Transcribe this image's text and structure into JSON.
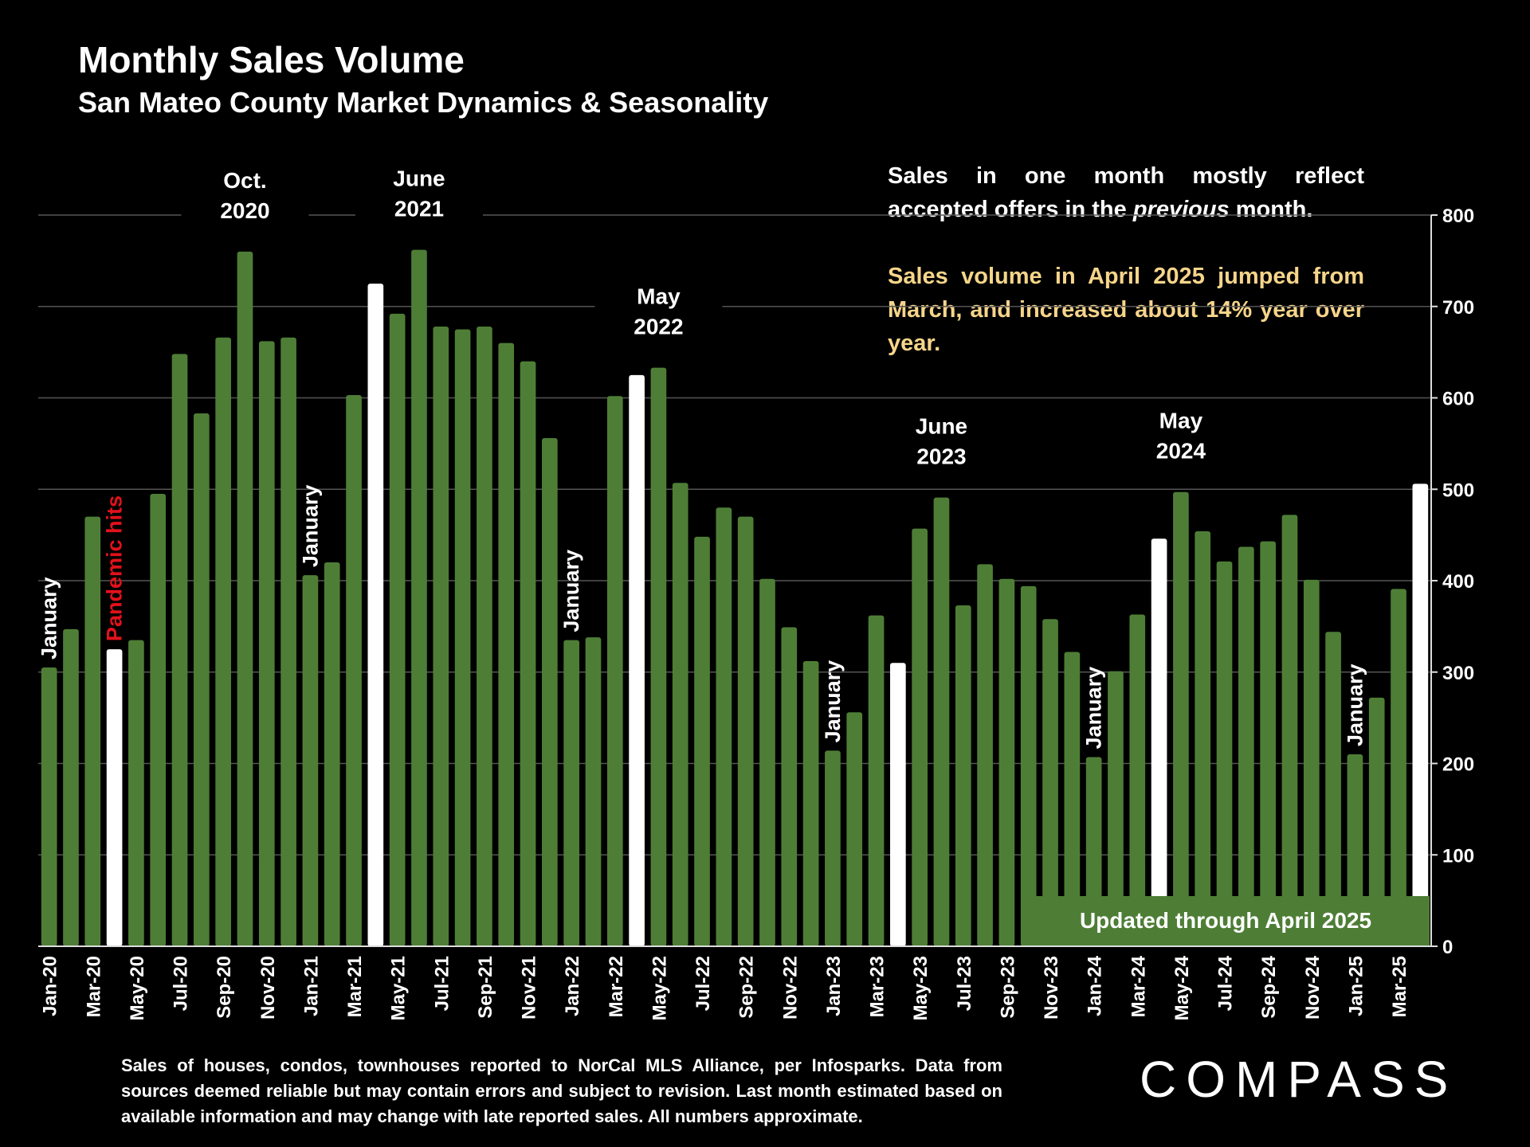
{
  "title": "Monthly Sales Volume",
  "subtitle": "San Mateo County Market Dynamics & Seasonality",
  "note_lines": [
    "Sales in one month mostly reflect",
    "accepted offers in the previous month."
  ],
  "highlight_note": "Sales volume in April 2025 jumped from March, and increased about 14% year over year.",
  "updated_label": "Updated through April 2025",
  "footer": "Sales of houses, condos, townhouses reported to NorCal MLS Alliance, per Infosparks. Data from sources deemed reliable but may contain errors and subject to revision. Last month estimated based on available information and may change with late reported sales. All numbers approximate.",
  "logo": "COMPASS",
  "colors": {
    "bar": "#4e7e36",
    "highlight_bar": "#ffffff",
    "highlight_text": "#f6d58a",
    "pandemic_text": "#e3111b",
    "gridline": "#555555"
  },
  "chart_data": {
    "type": "bar",
    "title": "Monthly Sales Volume",
    "ylim": [
      0,
      800
    ],
    "yticks": [
      "0",
      "100",
      "200",
      "300",
      "400",
      "500",
      "600",
      "700",
      "800"
    ],
    "y_axis_position": "right",
    "grid": true,
    "categories": [
      "Jan-20",
      "Feb-20",
      "Mar-20",
      "Apr-20",
      "May-20",
      "Jun-20",
      "Jul-20",
      "Aug-20",
      "Sep-20",
      "Oct-20",
      "Nov-20",
      "Dec-20",
      "Jan-21",
      "Feb-21",
      "Mar-21",
      "Apr-21",
      "May-21",
      "Jun-21",
      "Jul-21",
      "Aug-21",
      "Sep-21",
      "Oct-21",
      "Nov-21",
      "Dec-21",
      "Jan-22",
      "Feb-22",
      "Mar-22",
      "Apr-22",
      "May-22",
      "Jun-22",
      "Jul-22",
      "Aug-22",
      "Sep-22",
      "Oct-22",
      "Nov-22",
      "Dec-22",
      "Jan-23",
      "Feb-23",
      "Mar-23",
      "Apr-23",
      "May-23",
      "Jun-23",
      "Jul-23",
      "Aug-23",
      "Sep-23",
      "Oct-23",
      "Nov-23",
      "Dec-23",
      "Jan-24",
      "Feb-24",
      "Mar-24",
      "Apr-24",
      "May-24",
      "Jun-24",
      "Jul-24",
      "Aug-24",
      "Sep-24",
      "Oct-24",
      "Nov-24",
      "Dec-24",
      "Jan-25",
      "Feb-25",
      "Mar-25",
      "Apr-25"
    ],
    "xtick_labels": [
      "Jan-20",
      "",
      "Mar-20",
      "",
      "May-20",
      "",
      "Jul-20",
      "",
      "Sep-20",
      "",
      "Nov-20",
      "",
      "Jan-21",
      "",
      "Mar-21",
      "",
      "May-21",
      "",
      "Jul-21",
      "",
      "Sep-21",
      "",
      "Nov-21",
      "",
      "Jan-22",
      "",
      "Mar-22",
      "",
      "May-22",
      "",
      "Jul-22",
      "",
      "Sep-22",
      "",
      "Nov-22",
      "",
      "Jan-23",
      "",
      "Mar-23",
      "",
      "May-23",
      "",
      "Jul-23",
      "",
      "Sep-23",
      "",
      "Nov-23",
      "",
      "Jan-24",
      "",
      "Mar-24",
      "",
      "May-24",
      "",
      "Jul-24",
      "",
      "Sep-24",
      "",
      "Nov-24",
      "",
      "Jan-25",
      "",
      "Mar-25",
      ""
    ],
    "values": [
      305,
      347,
      470,
      325,
      335,
      495,
      648,
      583,
      666,
      760,
      662,
      666,
      406,
      420,
      603,
      725,
      692,
      762,
      678,
      675,
      678,
      660,
      640,
      556,
      335,
      338,
      602,
      625,
      633,
      507,
      448,
      480,
      470,
      402,
      349,
      312,
      214,
      256,
      362,
      310,
      457,
      491,
      373,
      418,
      402,
      394,
      358,
      322,
      207,
      301,
      363,
      446,
      497,
      454,
      421,
      437,
      443,
      472,
      401,
      344,
      210,
      272,
      391,
      506
    ],
    "highlighted_categories": [
      "Apr-20",
      "Apr-21",
      "Apr-22",
      "Apr-23",
      "Apr-24",
      "Apr-25"
    ],
    "annotations": [
      {
        "category": "Jan-20",
        "text": "January",
        "vertical": true
      },
      {
        "category": "Apr-20",
        "text": "Pandemic hits",
        "vertical": true,
        "color": "#e3111b"
      },
      {
        "category": "Oct-20",
        "text": "Oct.\n2020"
      },
      {
        "category": "Jan-21",
        "text": "January",
        "vertical": true
      },
      {
        "category": "Jun-21",
        "text": "June\n2021"
      },
      {
        "category": "Jan-22",
        "text": "January",
        "vertical": true
      },
      {
        "category": "May-22",
        "text": "May\n2022"
      },
      {
        "category": "Jan-23",
        "text": "January",
        "vertical": true
      },
      {
        "category": "Jun-23",
        "text": "June\n2023"
      },
      {
        "category": "Jan-24",
        "text": "January",
        "vertical": true
      },
      {
        "category": "May-24",
        "text": "May\n2024"
      },
      {
        "category": "Jan-25",
        "text": "January",
        "vertical": true
      }
    ]
  }
}
